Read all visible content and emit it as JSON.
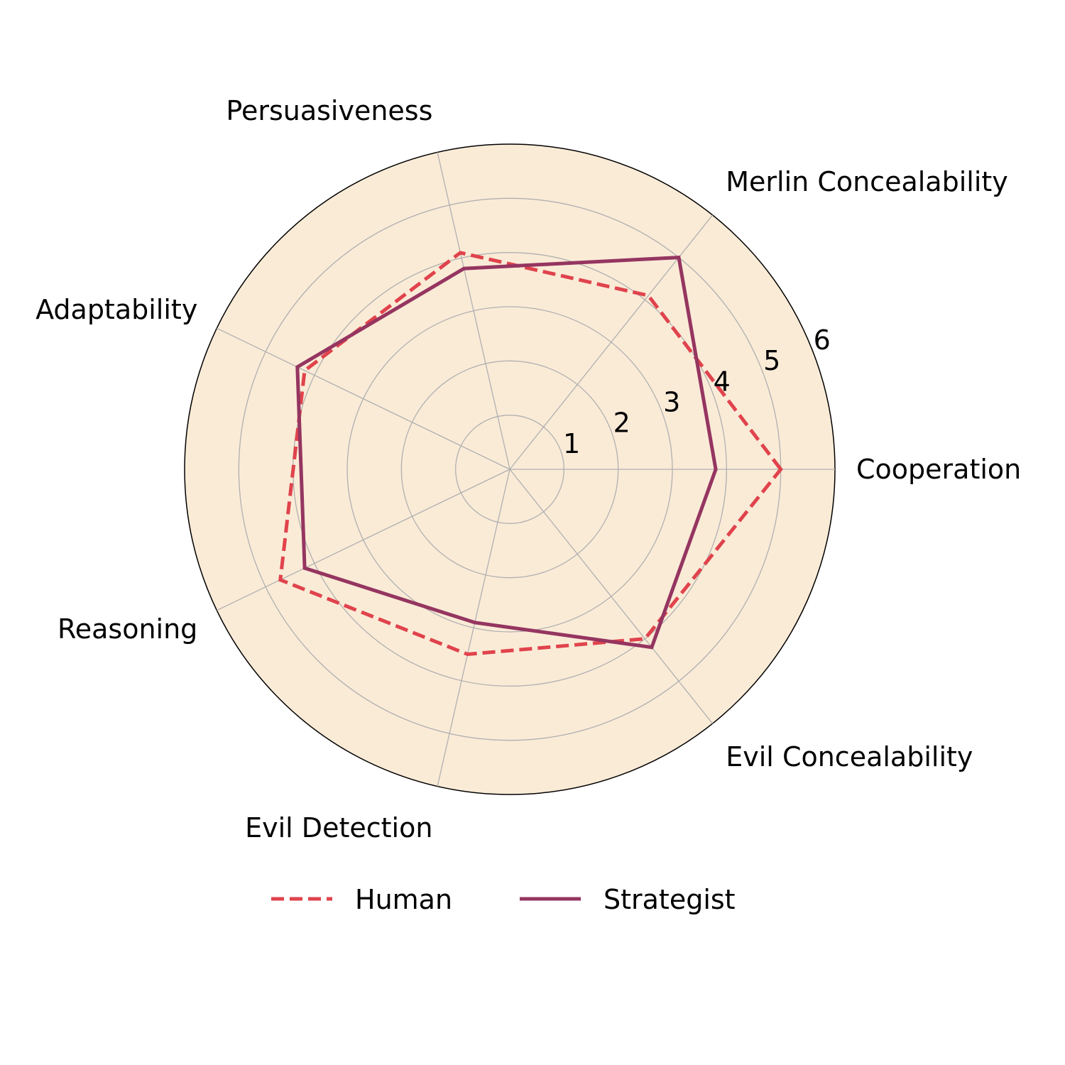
{
  "chart_data": {
    "type": "radar",
    "axes": [
      "Cooperation",
      "Merlin Concealability",
      "Persuasiveness",
      "Adaptability",
      "Reasoning",
      "Evil Detection",
      "Evil Concealability"
    ],
    "r_ticks": [
      "1",
      "2",
      "3",
      "4",
      "5",
      "6"
    ],
    "r_max": 6,
    "grid": true,
    "background_color": "#faebd7",
    "legend_position": "bottom",
    "series": [
      {
        "name": "Human",
        "line_style": "dashed",
        "color": "#e0434c",
        "values": [
          5.0,
          4.1,
          4.1,
          4.2,
          4.7,
          3.5,
          4.0
        ]
      },
      {
        "name": "Strategist",
        "line_style": "solid",
        "color": "#953560",
        "values": [
          3.8,
          5.0,
          3.8,
          4.35,
          4.2,
          2.9,
          4.2
        ]
      }
    ]
  }
}
